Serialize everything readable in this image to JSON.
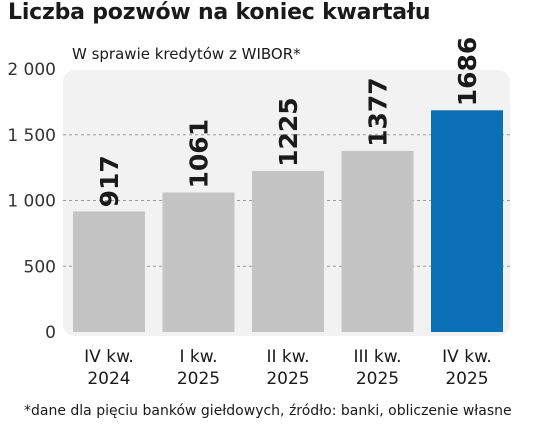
{
  "title": "Liczba pozwów na koniec kwartału",
  "subtitle": "W sprawie kredytów z WIBOR*",
  "note": "*dane dla pięciu banków giełdowych, źródło: banki, obliczenie własne",
  "colors": {
    "bar_default": "#c4c4c4",
    "bar_highlight": "#0b6fb6",
    "plot_background": "#f2f2f2",
    "gridline": "#9a9a9a"
  },
  "chart_data": {
    "type": "bar",
    "categories": [
      [
        "IV kw.",
        "2024"
      ],
      [
        "I kw.",
        "2025"
      ],
      [
        "II kw.",
        "2025"
      ],
      [
        "III kw.",
        "2025"
      ],
      [
        "IV kw.",
        "2025"
      ]
    ],
    "values": [
      917,
      1061,
      1225,
      1377,
      1686
    ],
    "data_labels": [
      "917",
      "1061",
      "1225",
      "1377",
      "1686"
    ],
    "highlighted_index": 4,
    "ylim": [
      0,
      2000
    ],
    "yticks": [
      0,
      500,
      1000,
      1500,
      2000
    ],
    "ytick_labels": [
      "0",
      "500",
      "1 000",
      "1 500",
      "2 000"
    ],
    "grid": "horizontal dashed",
    "xlabel": "",
    "ylabel": ""
  }
}
